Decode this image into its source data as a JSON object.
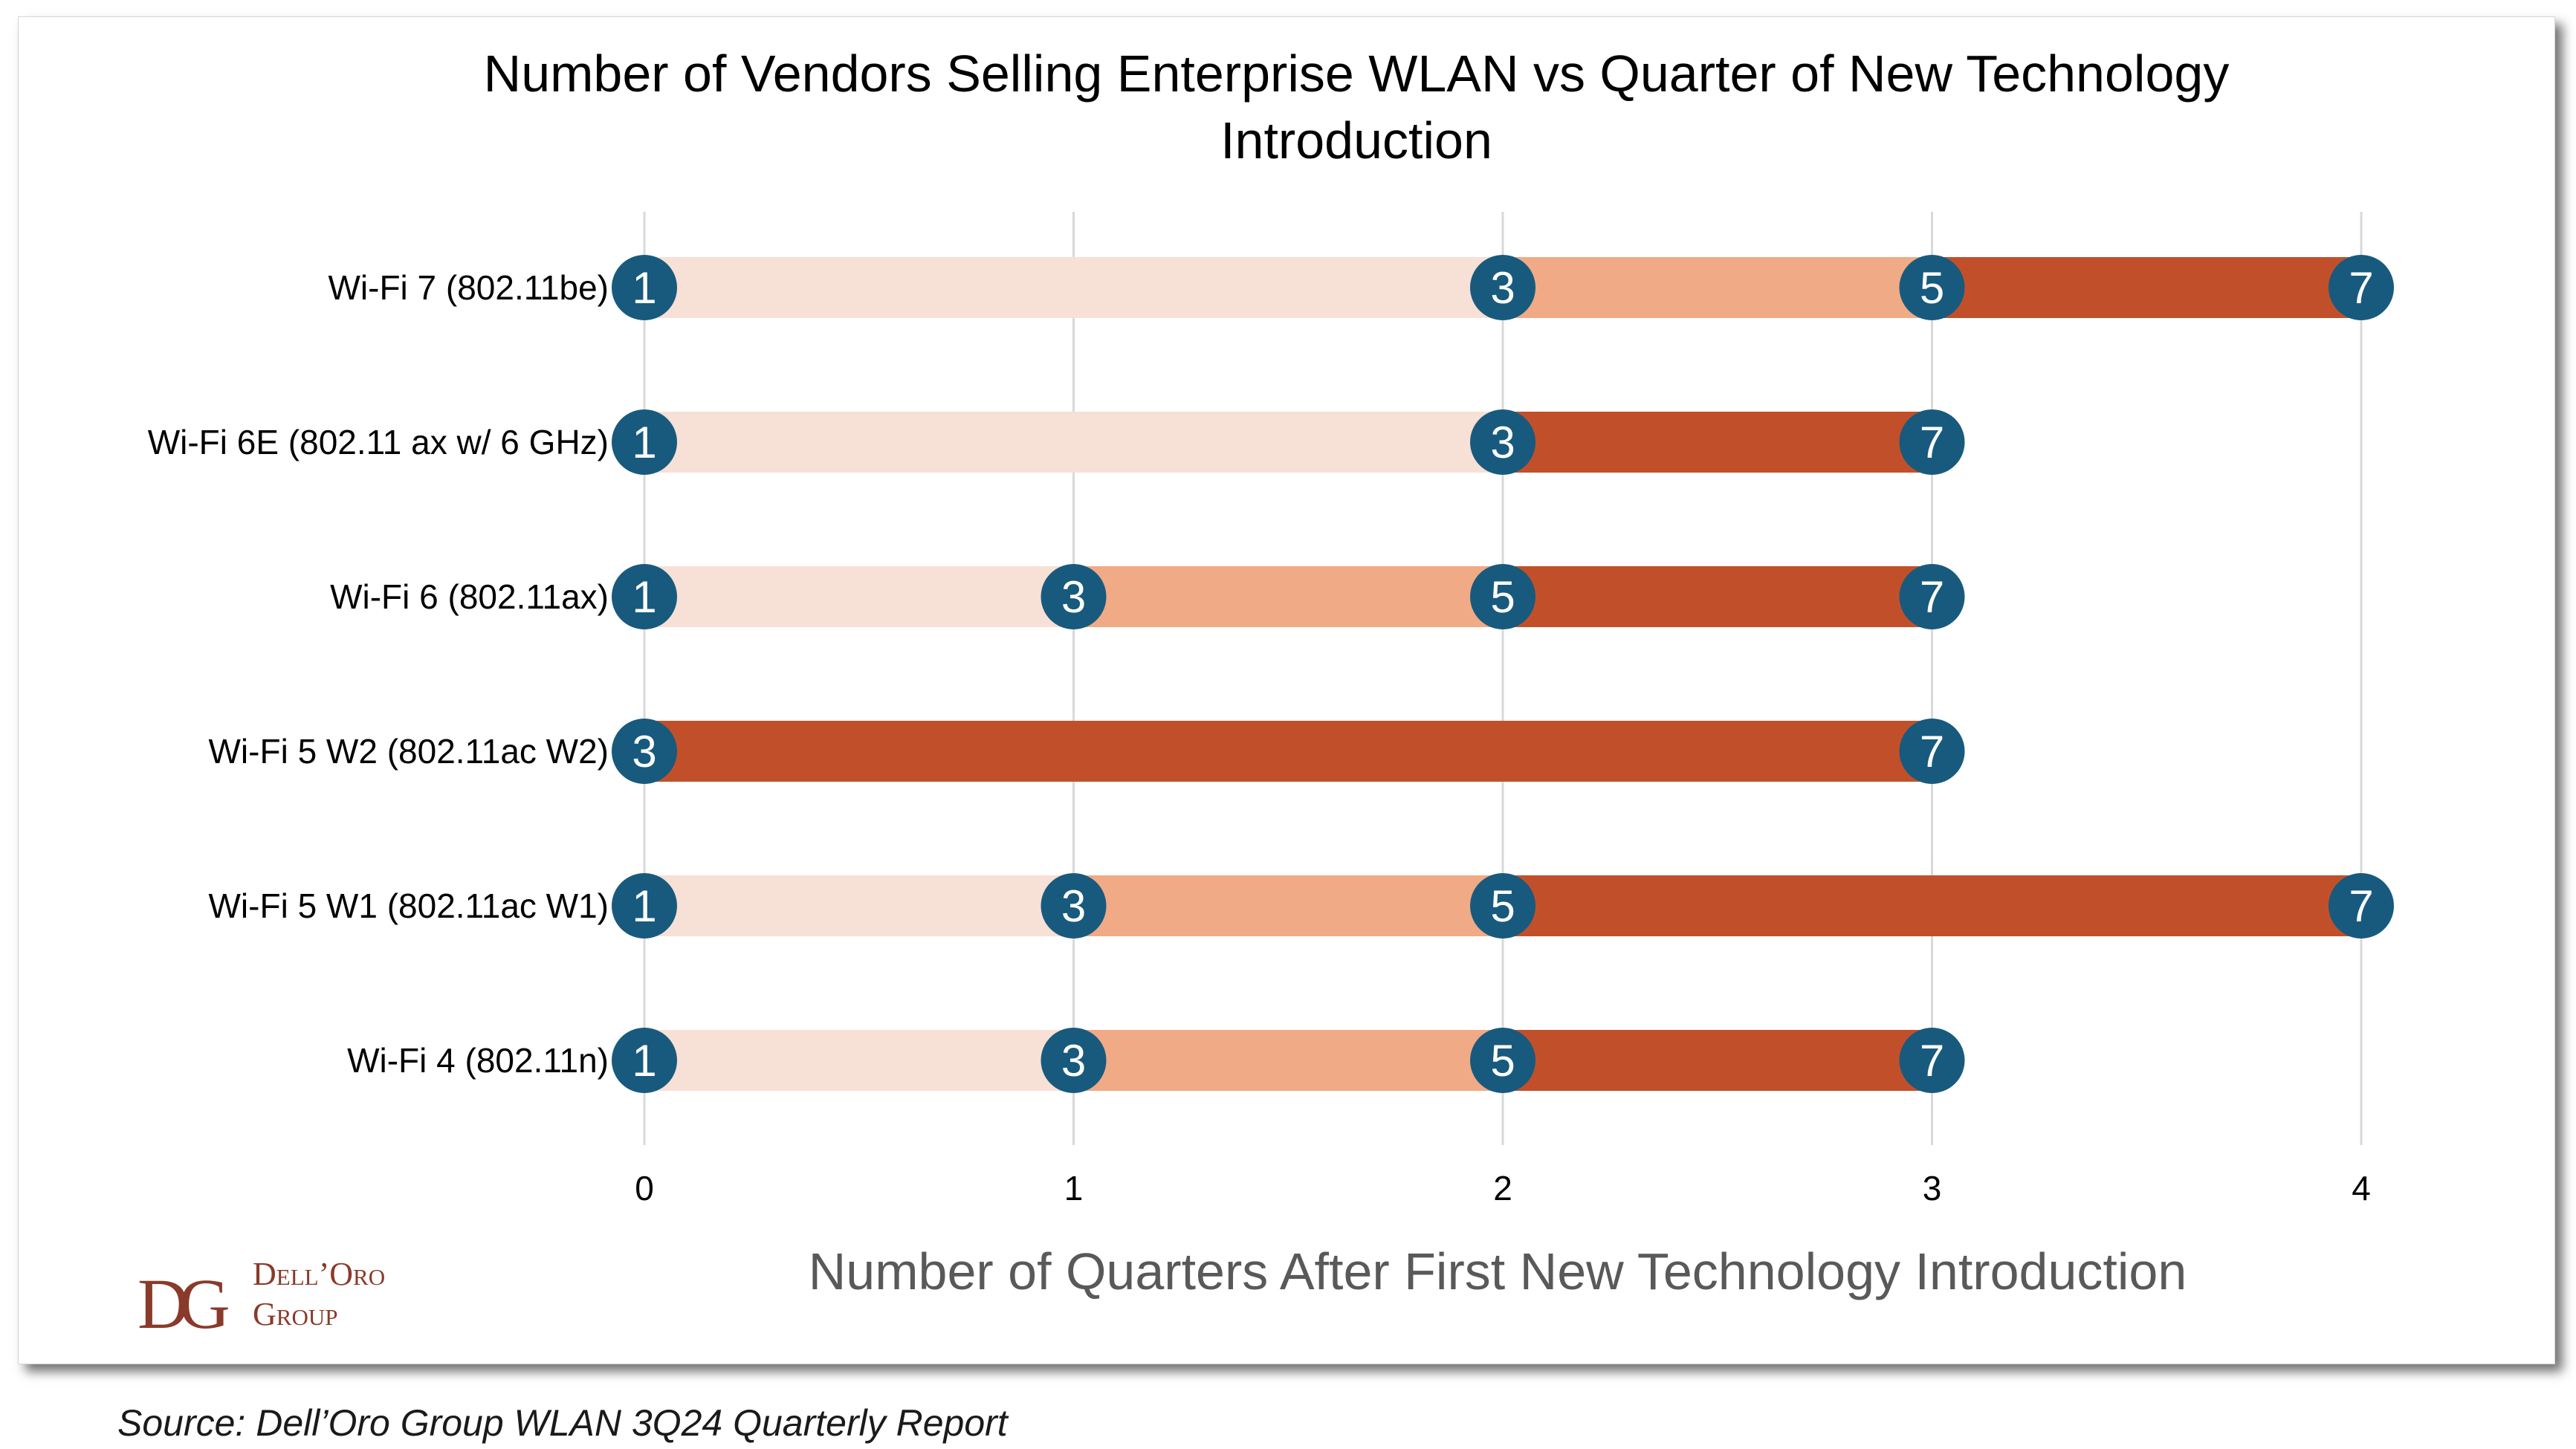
{
  "source_note": "Source: Dell’Oro Group WLAN 3Q24 Quarterly Report",
  "logo": {
    "monogram": "DG",
    "line1": "Dell’Oro",
    "line2": "Group",
    "color": "#8a3a2a"
  },
  "colors": {
    "segment_light": "#f7e0d5",
    "segment_mid": "#f0aa86",
    "segment_dark": "#c1502a",
    "marker": "#185a7e",
    "marker_text": "#ffffff",
    "grid": "#d9d9d9"
  },
  "chart_data": {
    "type": "bar",
    "orientation": "horizontal",
    "title": "Number of Vendors Selling Enterprise WLAN vs Quarter of New Technology Introduction",
    "title_lines": [
      "Number of Vendors Selling Enterprise WLAN vs Quarter of New Technology",
      "Introduction"
    ],
    "xlabel": "Number of Quarters After First New Technology Introduction",
    "ylabel": "",
    "xlim": [
      0,
      4
    ],
    "x_ticks": [
      "0",
      "1",
      "2",
      "3",
      "4"
    ],
    "grid": "vertical",
    "legend": "none",
    "categories": [
      "Wi-Fi 7 (802.11be)",
      "Wi-Fi 6E (802.11 ax w/ 6 GHz)",
      "Wi-Fi 6 (802.11ax)",
      "Wi-Fi 5 W2 (802.11ac W2)",
      "Wi-Fi 5 W1 (802.11ac W1)",
      "Wi-Fi 4 (802.11n)"
    ],
    "rows": [
      {
        "category": "Wi-Fi 7 (802.11be)",
        "segments": [
          {
            "from": 0,
            "to": 2,
            "vendors_at_start": 1,
            "shade": "light"
          },
          {
            "from": 2,
            "to": 3,
            "vendors_at_start": 3,
            "shade": "mid"
          },
          {
            "from": 3,
            "to": 4,
            "vendors_at_start": 5,
            "shade": "dark"
          }
        ],
        "markers": [
          {
            "x": 0,
            "vendors": 1
          },
          {
            "x": 2,
            "vendors": 3
          },
          {
            "x": 3,
            "vendors": 5
          },
          {
            "x": 4,
            "vendors": 7
          }
        ]
      },
      {
        "category": "Wi-Fi 6E (802.11 ax w/ 6 GHz)",
        "segments": [
          {
            "from": 0,
            "to": 2,
            "vendors_at_start": 1,
            "shade": "light"
          },
          {
            "from": 2,
            "to": 3,
            "vendors_at_start": 3,
            "shade": "dark"
          }
        ],
        "markers": [
          {
            "x": 0,
            "vendors": 1
          },
          {
            "x": 2,
            "vendors": 3
          },
          {
            "x": 3,
            "vendors": 7
          }
        ]
      },
      {
        "category": "Wi-Fi 6 (802.11ax)",
        "segments": [
          {
            "from": 0,
            "to": 1,
            "vendors_at_start": 1,
            "shade": "light"
          },
          {
            "from": 1,
            "to": 2,
            "vendors_at_start": 3,
            "shade": "mid"
          },
          {
            "from": 2,
            "to": 3,
            "vendors_at_start": 5,
            "shade": "dark"
          }
        ],
        "markers": [
          {
            "x": 0,
            "vendors": 1
          },
          {
            "x": 1,
            "vendors": 3
          },
          {
            "x": 2,
            "vendors": 5
          },
          {
            "x": 3,
            "vendors": 7
          }
        ]
      },
      {
        "category": "Wi-Fi 5 W2 (802.11ac W2)",
        "segments": [
          {
            "from": 0,
            "to": 3,
            "vendors_at_start": 3,
            "shade": "dark"
          }
        ],
        "markers": [
          {
            "x": 0,
            "vendors": 3
          },
          {
            "x": 3,
            "vendors": 7
          }
        ]
      },
      {
        "category": "Wi-Fi 5 W1 (802.11ac W1)",
        "segments": [
          {
            "from": 0,
            "to": 1,
            "vendors_at_start": 1,
            "shade": "light"
          },
          {
            "from": 1,
            "to": 2,
            "vendors_at_start": 3,
            "shade": "mid"
          },
          {
            "from": 2,
            "to": 4,
            "vendors_at_start": 5,
            "shade": "dark"
          }
        ],
        "markers": [
          {
            "x": 0,
            "vendors": 1
          },
          {
            "x": 1,
            "vendors": 3
          },
          {
            "x": 2,
            "vendors": 5
          },
          {
            "x": 4,
            "vendors": 7
          }
        ]
      },
      {
        "category": "Wi-Fi 4 (802.11n)",
        "segments": [
          {
            "from": 0,
            "to": 1,
            "vendors_at_start": 1,
            "shade": "light"
          },
          {
            "from": 1,
            "to": 2,
            "vendors_at_start": 3,
            "shade": "mid"
          },
          {
            "from": 2,
            "to": 3,
            "vendors_at_start": 5,
            "shade": "dark"
          }
        ],
        "markers": [
          {
            "x": 0,
            "vendors": 1
          },
          {
            "x": 1,
            "vendors": 3
          },
          {
            "x": 2,
            "vendors": 5
          },
          {
            "x": 3,
            "vendors": 7
          }
        ]
      }
    ]
  }
}
